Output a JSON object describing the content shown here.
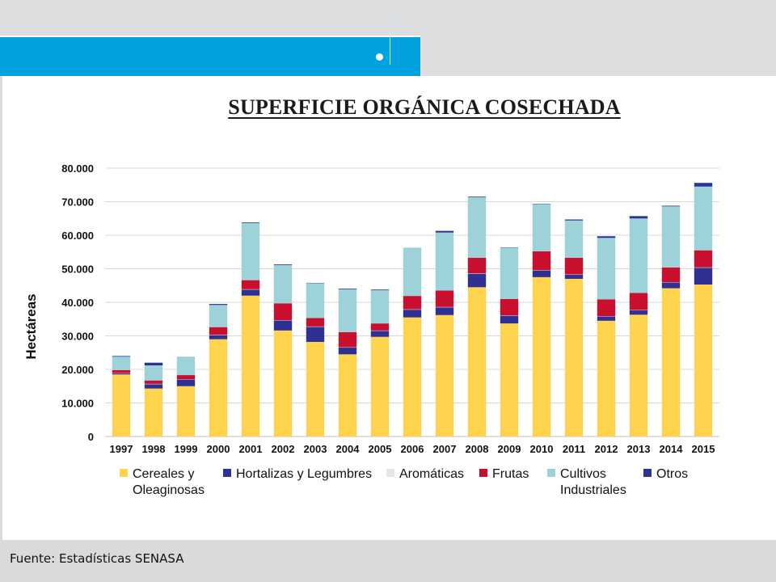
{
  "title": "SUPERFICIE ORGÁNICA COSECHADA",
  "source": "Fuente: Estadísticas SENASA",
  "chart_data": {
    "type": "bar",
    "stacked": true,
    "ylabel": "Hectáreas",
    "ylim": [
      0,
      80000
    ],
    "yticks": [
      0,
      10000,
      20000,
      30000,
      40000,
      50000,
      60000,
      70000,
      80000
    ],
    "ytick_labels": [
      "0",
      "10.000",
      "20.000",
      "30.000",
      "40.000",
      "50.000",
      "60.000",
      "70.000",
      "80.000"
    ],
    "grid": true,
    "legend_position": "bottom",
    "categories": [
      "1997",
      "1998",
      "1999",
      "2000",
      "2001",
      "2002",
      "2003",
      "2004",
      "2005",
      "2006",
      "2007",
      "2008",
      "2009",
      "2010",
      "2011",
      "2012",
      "2013",
      "2014",
      "2015"
    ],
    "series": [
      {
        "name": "Cereales y Oleaginosas",
        "color": "#ffd34d",
        "values": [
          18500,
          14300,
          15000,
          29000,
          42000,
          31600,
          28200,
          24500,
          29700,
          35500,
          36200,
          44500,
          33700,
          47500,
          47000,
          34500,
          36300,
          44200,
          45300
        ]
      },
      {
        "name": "Hortalizas y Legumbres",
        "color": "#2e3192",
        "values": [
          300,
          1300,
          2000,
          1200,
          1800,
          3000,
          4500,
          2000,
          1800,
          2300,
          2300,
          4000,
          2300,
          2000,
          1200,
          1300,
          1300,
          1700,
          5000
        ]
      },
      {
        "name": "Aromáticas",
        "color": "#e6e6e6",
        "values": [
          100,
          100,
          100,
          100,
          100,
          100,
          100,
          100,
          100,
          100,
          100,
          100,
          100,
          100,
          100,
          100,
          100,
          100,
          100
        ]
      },
      {
        "name": "Frutas",
        "color": "#c8102e",
        "values": [
          900,
          1000,
          1200,
          2300,
          2700,
          5000,
          2500,
          4500,
          2100,
          4000,
          4900,
          4700,
          4900,
          5600,
          5000,
          5000,
          5100,
          4400,
          5100
        ]
      },
      {
        "name": "Cultivos Industriales",
        "color": "#9dd2d9",
        "values": [
          4000,
          4500,
          5500,
          6600,
          17000,
          11400,
          10400,
          12800,
          9900,
          14400,
          17300,
          18000,
          15300,
          14100,
          11100,
          18300,
          22200,
          18200,
          19000
        ]
      },
      {
        "name": "Otros",
        "color": "#2b3590",
        "values": [
          200,
          800,
          0,
          300,
          200,
          200,
          100,
          200,
          200,
          0,
          500,
          200,
          100,
          100,
          300,
          500,
          700,
          200,
          1100
        ]
      }
    ],
    "legend": [
      {
        "series": "Cereales y Oleaginosas",
        "lines": [
          "Cereales y",
          "Oleaginosas"
        ]
      },
      {
        "series": "Hortalizas y Legumbres",
        "lines": [
          "Hortalizas y Legumbres"
        ]
      },
      {
        "series": "Aromáticas",
        "lines": [
          "Aromáticas"
        ]
      },
      {
        "series": "Frutas",
        "lines": [
          "Frutas"
        ]
      },
      {
        "series": "Cultivos Industriales",
        "lines": [
          "Cultivos",
          "Industriales"
        ]
      },
      {
        "series": "Otros",
        "lines": [
          "Otros"
        ]
      }
    ]
  }
}
